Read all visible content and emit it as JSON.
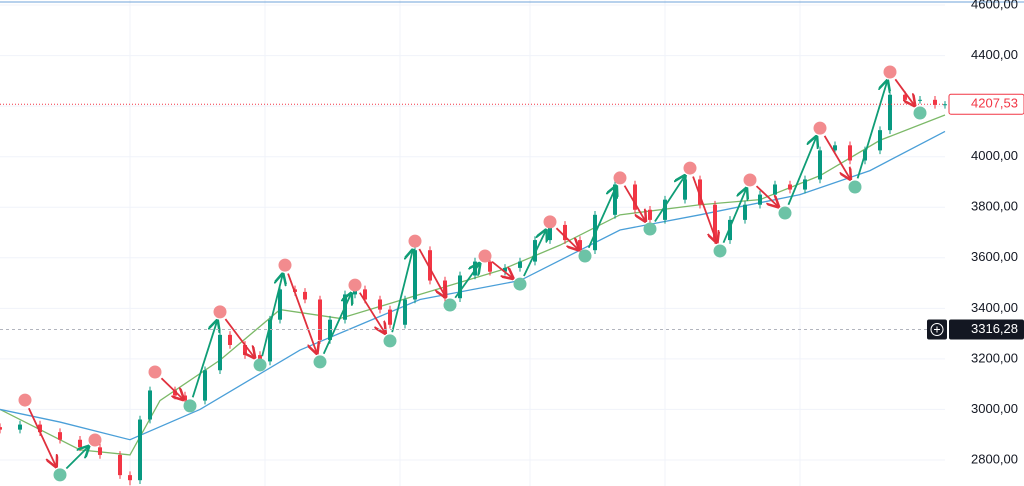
{
  "chart_data": {
    "type": "candlestick",
    "ylim": [
      2697,
      4620
    ],
    "xlim": [
      0,
      189
    ],
    "grid": true,
    "yticks": [
      {
        "value": 2800,
        "label": "2800,00"
      },
      {
        "value": 3000,
        "label": "3000,00"
      },
      {
        "value": 3200,
        "label": "3200,00"
      },
      {
        "value": 3400,
        "label": "3400,00"
      },
      {
        "value": 3600,
        "label": "3600,00"
      },
      {
        "value": 3800,
        "label": "3800,00"
      },
      {
        "value": 4000,
        "label": "4000,00"
      },
      {
        "value": 4200,
        "label": "4200,00"
      },
      {
        "value": 4400,
        "label": "4400,00"
      },
      {
        "value": 4600,
        "label": "4600,00"
      }
    ],
    "candles": {
      "up_color": "#089981",
      "down_color": "#f23645",
      "x": [
        0,
        4,
        8,
        12,
        16,
        20,
        24,
        26,
        28,
        30,
        35,
        37,
        41,
        44,
        46,
        49,
        52,
        54,
        56,
        59,
        61,
        64,
        66,
        69,
        71,
        73,
        76,
        78,
        81,
        83,
        86,
        89,
        92,
        95,
        98,
        101,
        104,
        107,
        110,
        113,
        116,
        119,
        123,
        127,
        130,
        133,
        137,
        140,
        143,
        146,
        149,
        152,
        155,
        158,
        161,
        164,
        167,
        170,
        173,
        176,
        178,
        181,
        184,
        187,
        189
      ],
      "open": [
        2930,
        2920,
        2940,
        2910,
        2880,
        2850,
        2820,
        2740,
        2720,
        2960,
        3075,
        3055,
        3035,
        3155,
        3295,
        3255,
        3215,
        3190,
        3355,
        3475,
        3465,
        3435,
        3275,
        3355,
        3455,
        3475,
        3435,
        3395,
        3335,
        3435,
        3630,
        3510,
        3440,
        3530,
        3585,
        3545,
        3560,
        3585,
        3670,
        3730,
        3670,
        3630,
        3770,
        3890,
        3790,
        3750,
        3830,
        3910,
        3810,
        3670,
        3750,
        3810,
        3850,
        3890,
        3870,
        3910,
        4025,
        4045,
        3985,
        4025,
        4105,
        4245,
        4225,
        4225,
        4205
      ],
      "high": [
        2945,
        2955,
        2955,
        2925,
        2895,
        2865,
        2835,
        2755,
        2975,
        3090,
        3090,
        3070,
        3170,
        3310,
        3310,
        3270,
        3230,
        3370,
        3490,
        3490,
        3480,
        3450,
        3370,
        3470,
        3490,
        3490,
        3450,
        3410,
        3450,
        3645,
        3645,
        3525,
        3545,
        3600,
        3600,
        3575,
        3600,
        3685,
        3745,
        3745,
        3685,
        3785,
        3905,
        3905,
        3805,
        3845,
        3925,
        3925,
        3825,
        3765,
        3825,
        3865,
        3905,
        3905,
        3925,
        4040,
        4060,
        4060,
        4040,
        4120,
        4260,
        4260,
        4240,
        4240,
        4220
      ],
      "low": [
        2905,
        2905,
        2895,
        2865,
        2835,
        2805,
        2725,
        2700,
        2705,
        2945,
        3040,
        3020,
        3020,
        3140,
        3240,
        3200,
        3175,
        3175,
        3340,
        3450,
        3420,
        3260,
        3260,
        3340,
        3440,
        3420,
        3380,
        3320,
        3320,
        3420,
        3495,
        3425,
        3425,
        3515,
        3530,
        3530,
        3545,
        3570,
        3655,
        3655,
        3615,
        3615,
        3755,
        3775,
        3735,
        3735,
        3815,
        3795,
        3655,
        3655,
        3735,
        3795,
        3835,
        3855,
        3855,
        3895,
        4010,
        3970,
        3970,
        4010,
        4090,
        4210,
        4210,
        4190,
        4190
      ],
      "close": [
        2920,
        2940,
        2910,
        2880,
        2850,
        2820,
        2740,
        2720,
        2960,
        3075,
        3055,
        3035,
        3155,
        3295,
        3255,
        3215,
        3190,
        3355,
        3475,
        3465,
        3435,
        3275,
        3355,
        3455,
        3475,
        3435,
        3395,
        3335,
        3435,
        3630,
        3510,
        3440,
        3530,
        3585,
        3545,
        3560,
        3585,
        3670,
        3730,
        3670,
        3630,
        3770,
        3890,
        3790,
        3750,
        3830,
        3910,
        3810,
        3670,
        3750,
        3810,
        3850,
        3890,
        3870,
        3910,
        4025,
        4045,
        3985,
        4025,
        4105,
        4245,
        4225,
        4225,
        4205,
        4207.53
      ]
    },
    "lines": [
      {
        "color": "#7cb968",
        "x": [
          0,
          6,
          16,
          26,
          32,
          44,
          56,
          68,
          84,
          100,
          112,
          124,
          140,
          152,
          164,
          176,
          189
        ],
        "values": [
          3000,
          2940,
          2840,
          2820,
          3035,
          3195,
          3395,
          3360,
          3455,
          3550,
          3650,
          3770,
          3810,
          3830,
          3925,
          4065,
          4165
        ]
      },
      {
        "color": "#4a9fd8",
        "x": [
          0,
          12,
          26,
          40,
          60,
          84,
          104,
          124,
          140,
          160,
          174,
          189
        ],
        "values": [
          3000,
          2950,
          2880,
          3000,
          3235,
          3435,
          3510,
          3710,
          3770,
          3850,
          3945,
          4100
        ]
      }
    ],
    "pivot_highs": {
      "color": "#f28b8e",
      "x": [
        5,
        19,
        31,
        44,
        57,
        71,
        83,
        97,
        110,
        124,
        138,
        150,
        164,
        178
      ],
      "values": [
        3037,
        2879,
        3148,
        3386,
        3571,
        3492,
        3666,
        3607,
        3742,
        3916,
        3955,
        3908,
        4113,
        4335
      ]
    },
    "pivot_lows": {
      "color": "#6cc3a6",
      "x": [
        12,
        38,
        52,
        64,
        78,
        90,
        104,
        117,
        130,
        144,
        157,
        171,
        184
      ],
      "values": [
        2741,
        3014,
        3176,
        3188,
        3271,
        3413,
        3496,
        3607,
        3714,
        3627,
        3777,
        3880,
        4173
      ]
    },
    "price_markers": [
      {
        "value": 4207.53,
        "label": "4207,53",
        "color": "#f23645"
      },
      {
        "value": 3316.28,
        "label": "3316,28",
        "color": "#131722"
      }
    ]
  }
}
